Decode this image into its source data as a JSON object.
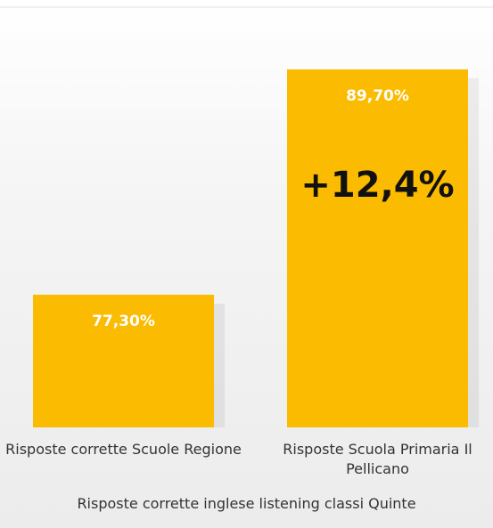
{
  "chart_data": {
    "type": "bar",
    "categories": [
      "Risposte corrette Scuole Regione",
      "Risposte Scuola Primaria Il Pellicano"
    ],
    "values": [
      77.3,
      89.7
    ],
    "value_labels": [
      "77,30%",
      "89,70%"
    ],
    "color": "#fbbb00",
    "ylim": [
      70,
      92
    ],
    "annotation": "+12,4%",
    "x_label": "Risposte corrette inglese listening classi Quinte"
  }
}
